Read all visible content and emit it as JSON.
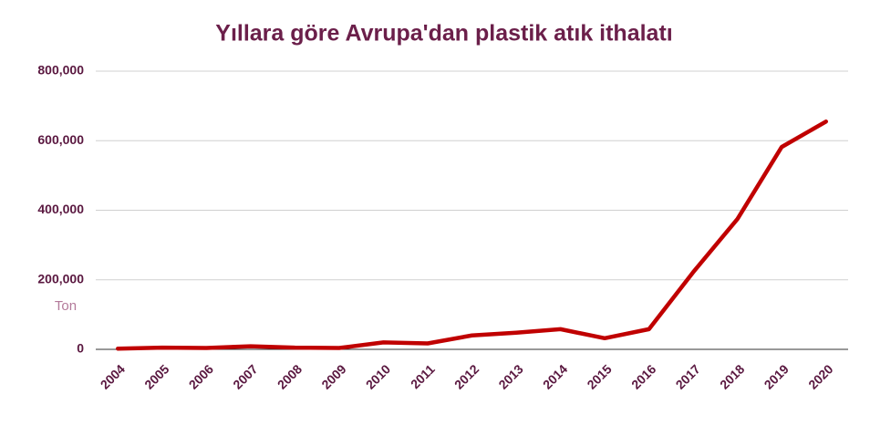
{
  "chart_data": {
    "type": "line",
    "title": "Yıllara göre Avrupa'dan plastik atık ithalatı",
    "y_label": "Ton",
    "categories": [
      "2004",
      "2005",
      "2006",
      "2007",
      "2008",
      "2009",
      "2010",
      "2011",
      "2012",
      "2013",
      "2014",
      "2015",
      "2016",
      "2017",
      "2018",
      "2019",
      "2020"
    ],
    "series": [
      {
        "color": "#c00000",
        "values": [
          2000,
          5000,
          4000,
          9000,
          5000,
          4000,
          20000,
          17000,
          40000,
          48000,
          58000,
          32000,
          58000,
          222000,
          375000,
          582000,
          655000
        ]
      }
    ],
    "ylim": [
      0,
      800000
    ],
    "yticks": [
      0,
      {
        "value": 200000,
        "label": "200,000"
      },
      {
        "value": 400000,
        "label": "400,000"
      },
      {
        "value": 600000,
        "label": "600,000"
      },
      {
        "value": 800000,
        "label": "800,000"
      }
    ],
    "grid": true
  }
}
